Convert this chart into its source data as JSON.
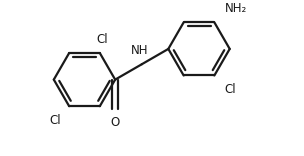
{
  "background": "#ffffff",
  "line_color": "#1a1a1a",
  "line_width": 1.6,
  "font_size": 8.5,
  "font_size_sub": 7.5,
  "figsize": [
    3.04,
    1.56
  ],
  "dpi": 100,
  "xlim": [
    0.0,
    6.2
  ],
  "ylim": [
    -0.3,
    3.3
  ]
}
